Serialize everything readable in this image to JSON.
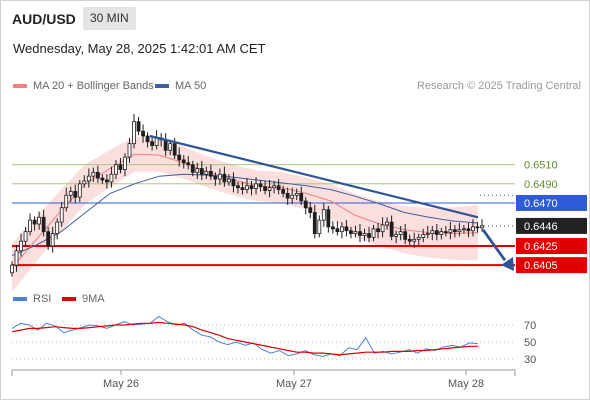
{
  "header": {
    "symbol": "AUD/USD",
    "timeframe": "30 MIN",
    "datetime": "Wednesday, May 28, 2025 1:42:01 AM CET"
  },
  "legend": {
    "ma20_label": "MA 20 + Bollinger Bands",
    "ma50_label": "MA 50",
    "credit": "Research © 2025 Trading Central",
    "rsi_label": "RSI",
    "rsi_ma_label": "9MA"
  },
  "colors": {
    "ma20": "#ef8080",
    "bollinger_fill": "#fbdada",
    "ma50": "#3f5fa0",
    "trendline": "#2f5596",
    "level_green": "#9bc16a",
    "level_blue": "#2f5ad8",
    "level_red": "#e00000",
    "candle": "#1e1e1e",
    "rsi": "#4f7fdc",
    "rsi_ma": "#e00000",
    "current_label": "#222222"
  },
  "chart_data": [
    {
      "type": "candlestick",
      "title": "AUD/USD 30 MIN",
      "x_ticks": [
        "May 26",
        "May 27",
        "May 28"
      ],
      "price_range": [
        0.6395,
        0.653
      ],
      "levels": [
        {
          "value": 0.651,
          "label": "0.6510",
          "kind": "resistance"
        },
        {
          "value": 0.649,
          "label": "0.6490",
          "kind": "resistance"
        },
        {
          "value": 0.647,
          "label": "0.6470",
          "kind": "pivot"
        },
        {
          "value": 0.6446,
          "label": "0.6446",
          "kind": "current"
        },
        {
          "value": 0.6425,
          "label": "0.6425",
          "kind": "support"
        },
        {
          "value": 0.6405,
          "label": "0.6405",
          "kind": "support"
        }
      ],
      "series": [
        {
          "name": "Close",
          "values": [
            0.6405,
            0.642,
            0.643,
            0.644,
            0.6452,
            0.6448,
            0.6455,
            0.644,
            0.6425,
            0.6438,
            0.645,
            0.6465,
            0.6478,
            0.6482,
            0.6476,
            0.649,
            0.6493,
            0.6498,
            0.6502,
            0.6496,
            0.6494,
            0.6492,
            0.65,
            0.651,
            0.6505,
            0.6518,
            0.6532,
            0.6555,
            0.6545,
            0.654,
            0.6534,
            0.653,
            0.6538,
            0.6536,
            0.6525,
            0.6532,
            0.652,
            0.6515,
            0.6512,
            0.651,
            0.6502,
            0.6506,
            0.65,
            0.6503,
            0.6498,
            0.6495,
            0.65,
            0.6492,
            0.6495,
            0.6488,
            0.6486,
            0.6484,
            0.6488,
            0.6485,
            0.649,
            0.6487,
            0.6483,
            0.6486,
            0.6488,
            0.6484,
            0.648,
            0.6475,
            0.6478,
            0.648,
            0.6472,
            0.6465,
            0.646,
            0.6438,
            0.6452,
            0.6463,
            0.6445,
            0.6443,
            0.644,
            0.6445,
            0.6441,
            0.6438,
            0.644,
            0.6436,
            0.6438,
            0.6434,
            0.6443,
            0.644,
            0.6447,
            0.645,
            0.6435,
            0.6437,
            0.644,
            0.6432,
            0.643,
            0.6432,
            0.6434,
            0.6437,
            0.6438,
            0.6441,
            0.6437,
            0.644,
            0.6439,
            0.6442,
            0.644,
            0.6442,
            0.6443,
            0.6441,
            0.6445,
            0.6444,
            0.6446
          ]
        },
        {
          "name": "MA 20",
          "values": [
            0.6402,
            0.6432,
            0.6462,
            0.649,
            0.6506,
            0.6521,
            0.652,
            0.6512,
            0.6502,
            0.6494,
            0.6488,
            0.6486,
            0.648,
            0.6472,
            0.6457,
            0.6448,
            0.6442,
            0.6439,
            0.6438,
            0.6439
          ]
        },
        {
          "name": "MA 50",
          "values": [
            0.6415,
            0.6426,
            0.644,
            0.646,
            0.648,
            0.649,
            0.6498,
            0.65,
            0.6499,
            0.6497,
            0.6494,
            0.6491,
            0.6488,
            0.6484,
            0.6477,
            0.6469,
            0.646,
            0.6455,
            0.6451,
            0.6449
          ]
        }
      ]
    },
    {
      "type": "line",
      "title": "RSI",
      "y_ticks": [
        70,
        50,
        30
      ],
      "ylim": [
        15,
        85
      ],
      "series": [
        {
          "name": "RSI",
          "values": [
            66,
            72,
            70,
            64,
            72,
            69,
            61,
            64,
            67,
            70,
            69,
            66,
            70,
            74,
            70,
            71,
            72,
            80,
            74,
            70,
            72,
            64,
            58,
            56,
            50,
            47,
            50,
            46,
            49,
            41,
            37,
            40,
            34,
            36,
            40,
            35,
            33,
            36,
            34,
            43,
            41,
            55,
            37,
            39,
            36,
            38,
            41,
            37,
            42,
            40,
            44,
            46,
            44,
            49,
            48
          ]
        },
        {
          "name": "9MA",
          "values": [
            62,
            64,
            66,
            66,
            67,
            68,
            67,
            66,
            66,
            67,
            68,
            69,
            70,
            70,
            71,
            72,
            72,
            73,
            72,
            71,
            70,
            68,
            64,
            61,
            58,
            54,
            52,
            50,
            48,
            46,
            44,
            42,
            40,
            38,
            38,
            37,
            37,
            36,
            35,
            36,
            37,
            38,
            38,
            38,
            39,
            39,
            39,
            40,
            40,
            41,
            42,
            43,
            44,
            45,
            45
          ]
        }
      ]
    }
  ]
}
